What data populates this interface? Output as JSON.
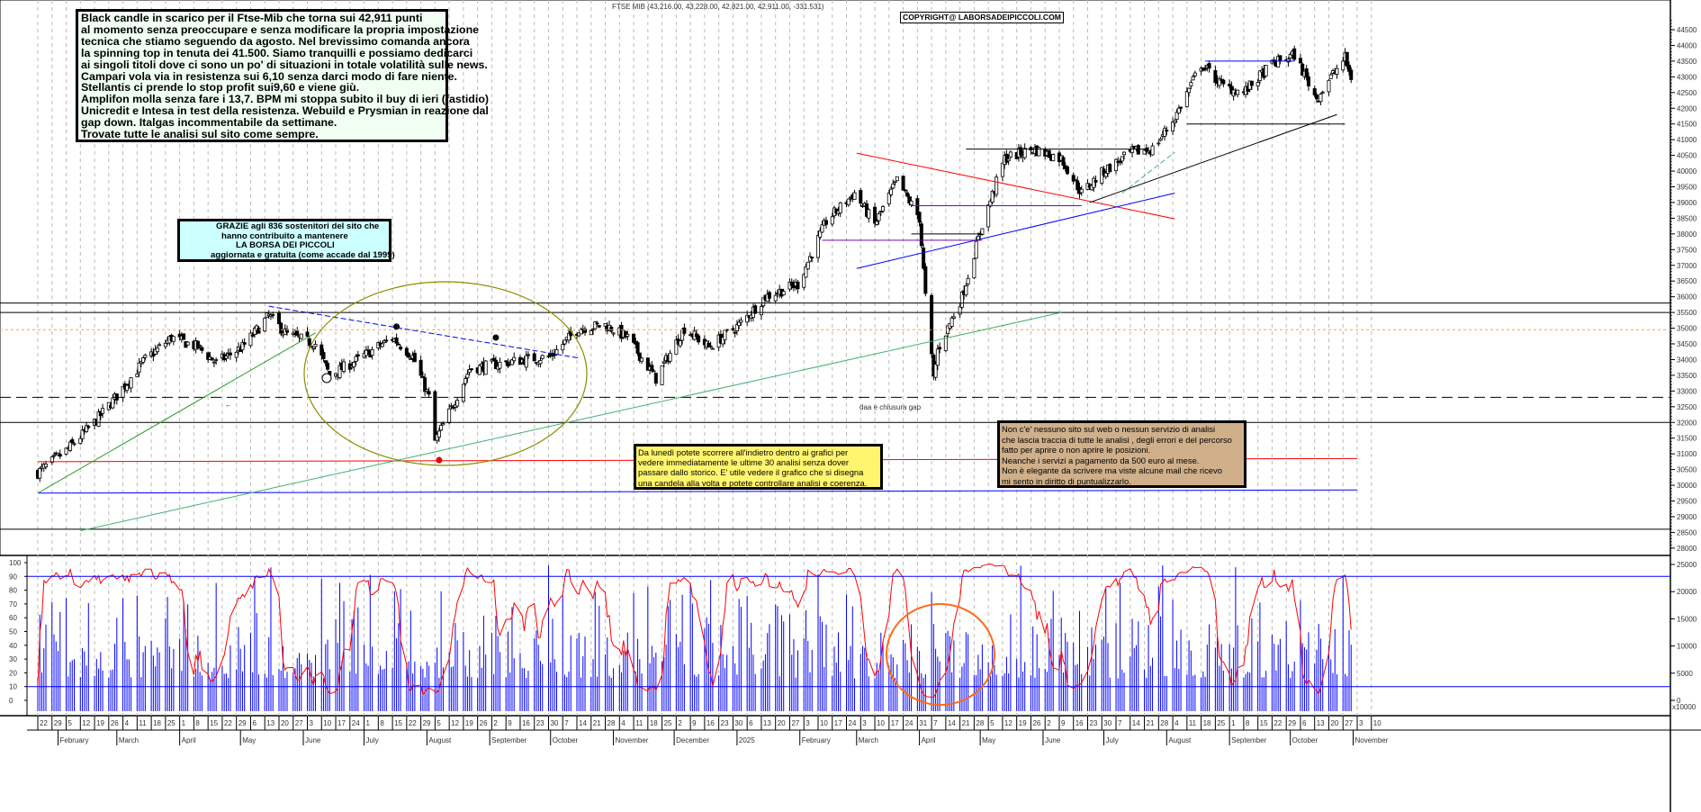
{
  "header": {
    "title": "FTSE MIB (43,216.00, 43,228.00, 42,821.00, 42,911.00, -331.531)",
    "copyright": "COPYRIGHT@ LABORSADEIPICCOLI.COM"
  },
  "notes": {
    "main": [
      "Black candle in scarico per il Ftse-Mib che torna sui 42,911 punti",
      "al momento senza preoccupare e senza modificare la propria impostazione",
      "tecnica che stiamo seguendo da agosto. Nel brevissimo comanda ancora",
      "la spinning top in tenuta dei 41.500. Siamo tranquilli e possiamo dedicarci",
      "ai singoli titoli dove ci sono un po' di situazioni in totale volatilità sulle news.",
      "Campari vola via in resistenza sui 6,10 senza darci modo di fare niente.",
      "Stellantis ci prende lo stop profit sui9,60 e viene giù.",
      "Amplifon molla senza fare i 13,7. BPM mi stoppa subito il buy di ieri (fastidio)",
      "Unicredit e Intesa in test della resistenza. Webuild e Prysmian in reazione dal",
      "gap down.  Italgas incommentabile da settimane.",
      "Trovate tutte le analisi sul sito come sempre."
    ],
    "thanks": [
      "GRAZIE  agli 836  sostenitori del sito che",
      "hanno contribuito a mantenere",
      "LA BORSA DEI PICCOLI",
      "aggiornata e gratuita (come accade dal 1999)"
    ],
    "history": [
      "Da lunedì potete scorrere all'indietro dentro ai grafici per",
      "vedere immediatamente le ultime 30 analisi senza dover",
      "passare dallo storico.  E' utile vedere il grafico che si disegna",
      "una candela alla volta e potete controllare analisi e coerenza."
    ],
    "unique": [
      "Non c'e' nessuno sito sul web o nessun servizio di analisi",
      "che lascia traccia di tutte le analisi , degli errori e del percorso",
      "fatto per aprire o non aprire le posizioni.",
      "Neanche i servizi a pagamento da 500 euro al mese.",
      "Non è elegante da scrivere ma viste alcune mail che ricevo",
      "mi sento in diritto di puntualizzarlo."
    ],
    "gap_label": "daa e chiusura gap"
  },
  "colors": {
    "up_candle": "#ffffff",
    "down_candle": "#000000",
    "oscillator": "#ff0000",
    "volume": "#0000ff",
    "grid": "#bbbbbb"
  },
  "chart_data": {
    "type": "candlestick",
    "instrument": "FTSE MIB",
    "last_bar": {
      "open": 43216.0,
      "high": 43228.0,
      "low": 42821.0,
      "close": 42911.0,
      "change": -331.531
    },
    "x_range": [
      "2024-01-22",
      "2025-11-03"
    ],
    "ylim": [
      28000,
      44500
    ],
    "y_ticks": [
      44500,
      44000,
      43500,
      43000,
      42500,
      42000,
      41500,
      41000,
      40500,
      40000,
      39500,
      39000,
      38500,
      38000,
      37500,
      37000,
      36500,
      36000,
      35500,
      35000,
      34500,
      34000,
      33500,
      33000,
      32500,
      32000,
      31500,
      31000,
      30500,
      30000,
      29500,
      29000,
      28500,
      28000
    ],
    "grid": "vertical dashed weekly",
    "close_points": [
      [
        "2024-01-22",
        30400
      ],
      [
        "2024-02-05",
        31100
      ],
      [
        "2024-02-19",
        32000
      ],
      [
        "2024-03-01",
        32850
      ],
      [
        "2024-03-15",
        34000
      ],
      [
        "2024-03-28",
        34700
      ],
      [
        "2024-04-10",
        34400
      ],
      [
        "2024-04-19",
        33900
      ],
      [
        "2024-05-02",
        34400
      ],
      [
        "2024-05-15",
        35400
      ],
      [
        "2024-05-24",
        34800
      ],
      [
        "2024-06-07",
        34500
      ],
      [
        "2024-06-14",
        33500
      ],
      [
        "2024-06-28",
        34000
      ],
      [
        "2024-07-15",
        34700
      ],
      [
        "2024-07-25",
        34100
      ],
      [
        "2024-08-02",
        32800
      ],
      [
        "2024-08-05",
        31400
      ],
      [
        "2024-08-12",
        32300
      ],
      [
        "2024-08-22",
        33700
      ],
      [
        "2024-09-04",
        33850
      ],
      [
        "2024-09-18",
        34000
      ],
      [
        "2024-10-01",
        34100
      ],
      [
        "2024-10-15",
        35000
      ],
      [
        "2024-10-28",
        35100
      ],
      [
        "2024-11-08",
        34700
      ],
      [
        "2024-11-22",
        33400
      ],
      [
        "2024-12-06",
        35000
      ],
      [
        "2024-12-18",
        34400
      ],
      [
        "2025-01-02",
        35100
      ],
      [
        "2025-01-15",
        36000
      ],
      [
        "2025-01-31",
        36400
      ],
      [
        "2025-02-14",
        38400
      ],
      [
        "2025-02-28",
        39300
      ],
      [
        "2025-03-10",
        38300
      ],
      [
        "2025-03-21",
        39700
      ],
      [
        "2025-04-01",
        38500
      ],
      [
        "2025-04-04",
        36000
      ],
      [
        "2025-04-08",
        33400
      ],
      [
        "2025-04-10",
        34300
      ],
      [
        "2025-04-22",
        36000
      ],
      [
        "2025-05-02",
        38300
      ],
      [
        "2025-05-13",
        40400
      ],
      [
        "2025-05-27",
        40700
      ],
      [
        "2025-06-10",
        40400
      ],
      [
        "2025-06-20",
        39300
      ],
      [
        "2025-07-01",
        40000
      ],
      [
        "2025-07-15",
        40600
      ],
      [
        "2025-07-25",
        40700
      ],
      [
        "2025-08-05",
        41700
      ],
      [
        "2025-08-18",
        43400
      ],
      [
        "2025-08-29",
        42700
      ],
      [
        "2025-09-08",
        42500
      ],
      [
        "2025-09-22",
        43400
      ],
      [
        "2025-10-03",
        43700
      ],
      [
        "2025-10-14",
        42300
      ],
      [
        "2025-10-20",
        42900
      ],
      [
        "2025-10-28",
        43600
      ],
      [
        "2025-10-31",
        42911
      ]
    ],
    "horizontal_levels": [
      {
        "price": 35800,
        "color": "#000000",
        "style": "solid"
      },
      {
        "price": 35500,
        "color": "#000000",
        "style": "solid"
      },
      {
        "price": 34950,
        "color": "#ffa040",
        "style": "dashed"
      },
      {
        "price": 32800,
        "color": "#000000",
        "style": "dashed"
      },
      {
        "price": 32000,
        "color": "#000000",
        "style": "solid"
      },
      {
        "price": 28600,
        "color": "#000000",
        "style": "solid"
      }
    ],
    "trendlines": [
      {
        "from": [
          "2024-01-22",
          30750
        ],
        "to": [
          "2025-11-03",
          30850
        ],
        "color": "#ff0000"
      },
      {
        "from": [
          "2024-01-22",
          29750
        ],
        "to": [
          "2025-11-03",
          29850
        ],
        "color": "#0000ff"
      },
      {
        "from": [
          "2024-01-22",
          29750
        ],
        "to": [
          "2024-06-07",
          34850
        ],
        "color": "#2ca02c"
      },
      {
        "from": [
          "2024-02-12",
          28550
        ],
        "to": [
          "2025-06-10",
          35500
        ],
        "color": "#3cb371"
      },
      {
        "from": [
          "2024-05-15",
          35700
        ],
        "to": [
          "2024-10-15",
          34050
        ],
        "color": "#0000ff",
        "style": "dashed"
      },
      {
        "from": [
          "2025-03-01",
          40570
        ],
        "to": [
          "2025-08-05",
          38480
        ],
        "color": "#ff0000"
      },
      {
        "from": [
          "2025-03-01",
          36900
        ],
        "to": [
          "2025-08-05",
          39300
        ],
        "color": "#0000ff"
      },
      {
        "from": [
          "2025-02-12",
          37800
        ],
        "to": [
          "2025-05-02",
          37800
        ],
        "color": "#6a0dad"
      },
      {
        "from": [
          "2025-03-28",
          38900
        ],
        "to": [
          "2025-06-20",
          38900
        ],
        "color": "#6a0dad"
      },
      {
        "from": [
          "2025-03-28",
          38000
        ],
        "to": [
          "2025-05-02",
          38000
        ],
        "color": "#000000"
      },
      {
        "from": [
          "2025-04-24",
          40700
        ],
        "to": [
          "2025-07-22",
          40700
        ],
        "color": "#000000"
      },
      {
        "from": [
          "2025-08-11",
          41500
        ],
        "to": [
          "2025-10-28",
          41500
        ],
        "color": "#000000"
      },
      {
        "from": [
          "2025-08-20",
          43500
        ],
        "to": [
          "2025-10-03",
          43500
        ],
        "color": "#0000ff"
      },
      {
        "from": [
          "2025-06-24",
          39000
        ],
        "to": [
          "2025-10-24",
          41800
        ],
        "color": "#000000"
      },
      {
        "from": [
          "2025-07-10",
          39300
        ],
        "to": [
          "2025-08-05",
          40600
        ],
        "color": "#3cb371",
        "style": "dashed"
      }
    ],
    "markers": [
      {
        "label": "1",
        "date": "2024-07-17",
        "price": 35050,
        "color": "#000000"
      },
      {
        "label": "2",
        "date": "2024-09-04",
        "price": 34700,
        "color": "#000000"
      },
      {
        "label": "1",
        "date": "2024-08-07",
        "price": 30800,
        "color": "#ff0000"
      }
    ],
    "oscillator": {
      "ylim": [
        0,
        100
      ],
      "y_ticks": [
        100,
        90,
        80,
        70,
        60,
        50,
        40,
        30,
        20,
        10,
        0
      ],
      "levels": [
        90,
        10
      ],
      "level_color": "#0000ff"
    },
    "volume": {
      "y_ticks": [
        25000,
        20000,
        15000,
        10000,
        5000,
        0
      ],
      "unit_label": "x10000"
    },
    "months": [
      [
        "2024-02-01",
        "February"
      ],
      [
        "2024-03-01",
        "March"
      ],
      [
        "2024-04-01",
        "April"
      ],
      [
        "2024-05-01",
        "May"
      ],
      [
        "2024-06-01",
        "June"
      ],
      [
        "2024-07-01",
        "July"
      ],
      [
        "2024-08-01",
        "August"
      ],
      [
        "2024-09-01",
        "September"
      ],
      [
        "2024-10-01",
        "October"
      ],
      [
        "2024-11-01",
        "November"
      ],
      [
        "2024-12-01",
        "December"
      ],
      [
        "2025-01-01",
        "2025"
      ],
      [
        "2025-02-01",
        "February"
      ],
      [
        "2025-03-01",
        "March"
      ],
      [
        "2025-04-01",
        "April"
      ],
      [
        "2025-05-01",
        "May"
      ],
      [
        "2025-06-01",
        "June"
      ],
      [
        "2025-07-01",
        "July"
      ],
      [
        "2025-08-01",
        "August"
      ],
      [
        "2025-09-01",
        "September"
      ],
      [
        "2025-10-01",
        "October"
      ],
      [
        "2025-11-01",
        "November"
      ]
    ]
  }
}
